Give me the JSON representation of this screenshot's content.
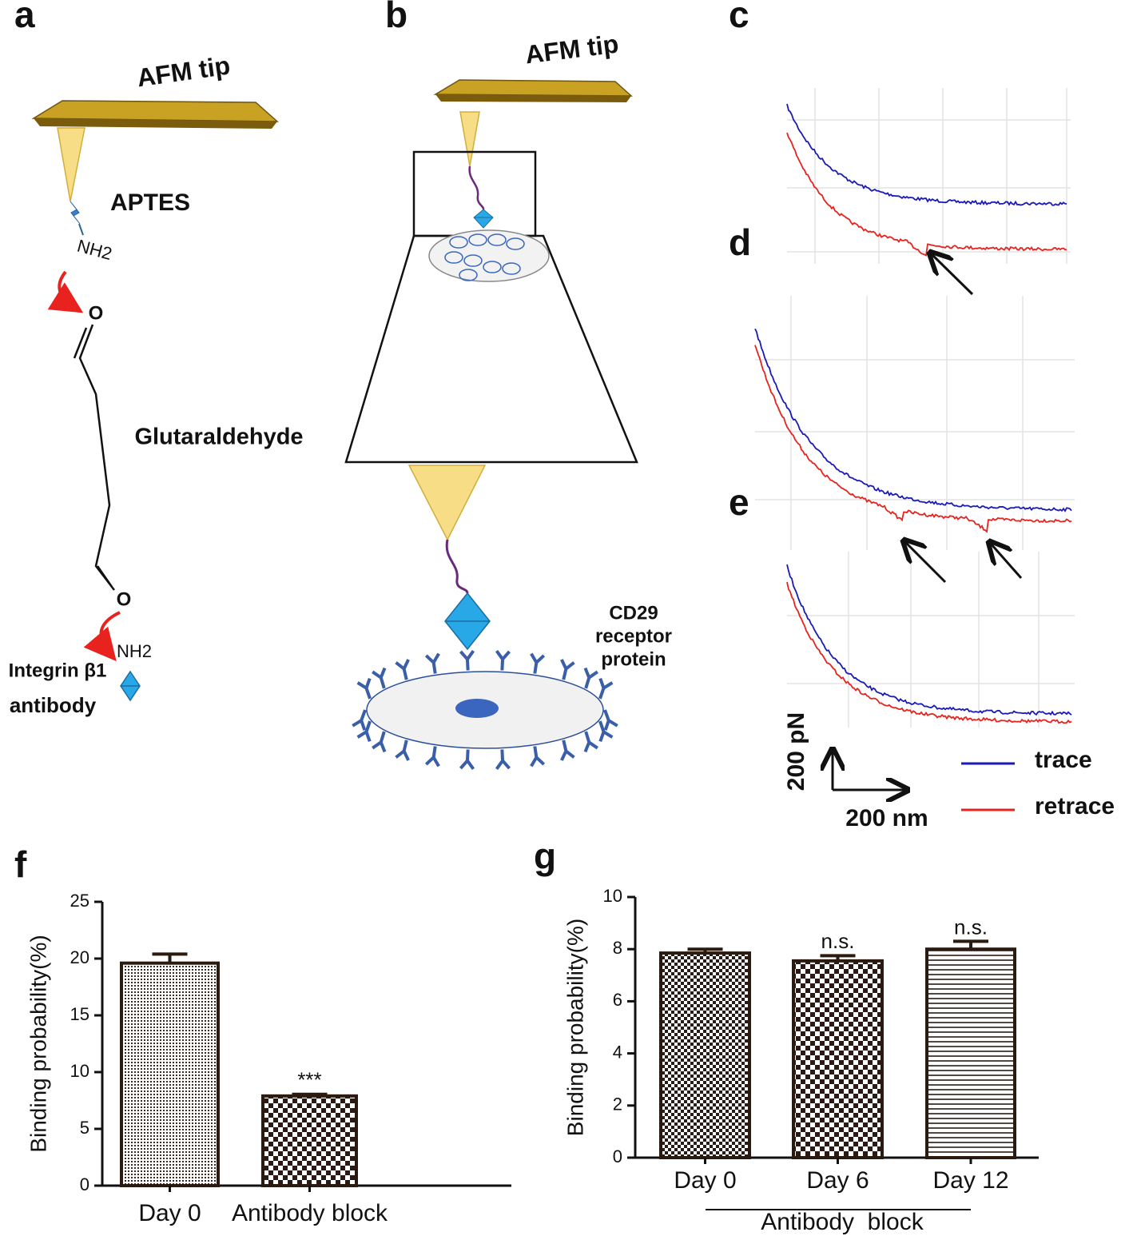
{
  "panel_labels": [
    "a",
    "b",
    "c",
    "d",
    "e",
    "f",
    "g"
  ],
  "panel_a": {
    "tip": "AFM tip",
    "linker": "APTES",
    "amine_top": "NH2",
    "oxygen_top": "O",
    "crosslinker": "Glutaraldehyde",
    "oxygen_bottom": "O",
    "amine_bottom": "NH2",
    "antibody": [
      "Integrin β1",
      "antibody"
    ]
  },
  "panel_b": {
    "tip": "AFM tip",
    "receptor": [
      "CD29",
      "receptor",
      "protein"
    ]
  },
  "force_curves": {
    "scale_y": "200 pN",
    "scale_x": "200 nm",
    "legend": [
      {
        "name": "trace",
        "color": "#1a1ab8"
      },
      {
        "name": "retrace",
        "color": "#e8231f"
      }
    ]
  },
  "chart_data": [
    {
      "type": "bar",
      "y_label": "Binding probability(%)",
      "categories": [
        "Day 0",
        "Antibody block"
      ],
      "values": [
        19.6,
        7.9
      ],
      "errors": [
        0.8,
        0.15
      ],
      "annotations": [
        null,
        "***"
      ],
      "ylim": [
        0,
        25
      ],
      "yticks": [
        0,
        5,
        10,
        15,
        20,
        25
      ],
      "color": "#2a1a10"
    },
    {
      "type": "bar",
      "y_label": "Binding probability(%)",
      "categories": [
        "Day 0",
        "Day 6",
        "Day 12"
      ],
      "values": [
        7.85,
        7.55,
        8.0
      ],
      "errors": [
        0.15,
        0.2,
        0.3
      ],
      "annotations": [
        null,
        "n.s.",
        "n.s."
      ],
      "group_label": "Antibody  block",
      "ylim": [
        0,
        10
      ],
      "yticks": [
        0,
        2,
        4,
        6,
        8,
        10
      ],
      "color": "#2a1a10"
    }
  ]
}
